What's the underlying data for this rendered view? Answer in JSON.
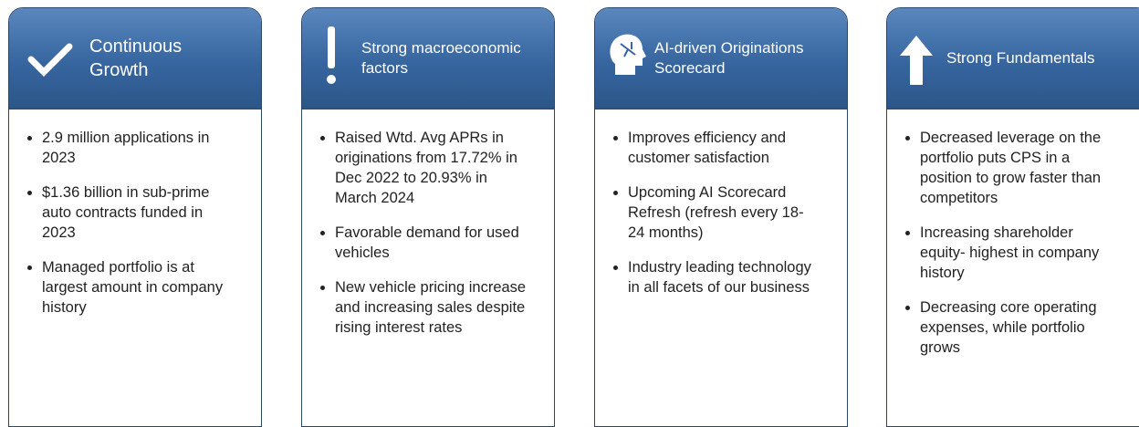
{
  "cards": [
    {
      "title": "Continuous Growth",
      "bullets": [
        "2.9 million applications in 2023",
        "$1.36 billion in sub-prime auto contracts funded in 2023",
        "Managed portfolio is at largest amount in company history"
      ]
    },
    {
      "title": "Strong macroeconomic factors",
      "bullets": [
        "Raised Wtd. Avg APRs in originations from 17.72% in Dec 2022 to 20.93% in March 2024",
        "Favorable demand for used vehicles",
        "New vehicle pricing increase and increasing sales despite rising interest rates"
      ]
    },
    {
      "title": "AI-driven Originations Scorecard",
      "bullets": [
        "Improves efficiency and customer satisfaction",
        "Upcoming AI Scorecard Refresh (refresh every 18-24 months)",
        "Industry leading technology in all facets of our business"
      ]
    },
    {
      "title": "Strong Fundamentals",
      "bullets": [
        "Decreased leverage on the portfolio puts CPS in a position to grow faster than competitors",
        "Increasing shareholder equity- highest in company history",
        "Decreasing core operating expenses, while portfolio grows"
      ]
    }
  ]
}
